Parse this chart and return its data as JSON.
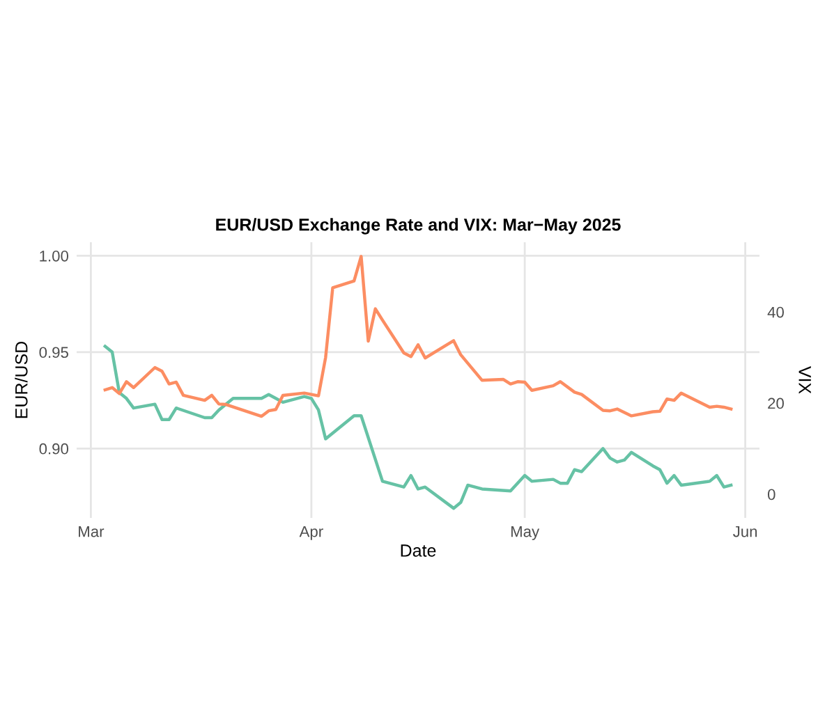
{
  "chart_data": {
    "type": "line",
    "title": "EUR/USD Exchange Rate and VIX: Mar−May 2025",
    "xlabel": "Date",
    "ylabel": "EUR/USD",
    "y2label": "VIX",
    "xlim": [
      "2025-02-27",
      "2025-06-03"
    ],
    "xticks": [
      {
        "value": "2025-03-01",
        "label": "Mar"
      },
      {
        "value": "2025-04-01",
        "label": "Apr"
      },
      {
        "value": "2025-05-01",
        "label": "May"
      },
      {
        "value": "2025-06-01",
        "label": "Jun"
      }
    ],
    "ylim": [
      0.864,
      1.007
    ],
    "yticks": [
      {
        "value": 0.9,
        "label": "0.90"
      },
      {
        "value": 0.95,
        "label": "0.95"
      },
      {
        "value": 1.0,
        "label": "1.00"
      }
    ],
    "y2lim": [
      -5.2,
      55.3
    ],
    "y2ticks": [
      0,
      20,
      40
    ],
    "grid": true,
    "legend": false,
    "series": [
      {
        "color": "#66c2a5",
        "x": [
          "2025-03-03",
          "2025-03-04",
          "2025-03-05",
          "2025-03-06",
          "2025-03-07",
          "2025-03-10",
          "2025-03-11",
          "2025-03-12",
          "2025-03-13",
          "2025-03-17",
          "2025-03-18",
          "2025-03-19",
          "2025-03-21",
          "2025-03-24",
          "2025-03-25",
          "2025-03-26",
          "2025-03-27",
          "2025-03-28",
          "2025-03-31",
          "2025-04-01",
          "2025-04-02",
          "2025-04-03",
          "2025-04-07",
          "2025-04-08",
          "2025-04-11",
          "2025-04-14",
          "2025-04-15",
          "2025-04-16",
          "2025-04-17",
          "2025-04-21",
          "2025-04-22",
          "2025-04-23",
          "2025-04-25",
          "2025-04-29",
          "2025-05-01",
          "2025-05-02",
          "2025-05-05",
          "2025-05-06",
          "2025-05-07",
          "2025-05-08",
          "2025-05-09",
          "2025-05-12",
          "2025-05-13",
          "2025-05-14",
          "2025-05-15",
          "2025-05-16",
          "2025-05-19",
          "2025-05-20",
          "2025-05-21",
          "2025-05-22",
          "2025-05-23",
          "2025-05-27",
          "2025-05-28",
          "2025-05-29",
          "2025-05-30"
        ],
        "values": [
          0.953,
          0.95,
          0.929,
          0.926,
          0.921,
          0.923,
          0.915,
          0.915,
          0.921,
          0.916,
          0.916,
          0.92,
          0.926,
          0.926,
          0.926,
          0.928,
          0.926,
          0.924,
          0.927,
          0.926,
          0.92,
          0.905,
          0.917,
          0.917,
          0.883,
          0.88,
          0.886,
          0.879,
          0.88,
          0.869,
          0.872,
          0.881,
          0.879,
          0.878,
          0.886,
          0.883,
          0.884,
          0.882,
          0.882,
          0.889,
          0.888,
          0.9,
          0.895,
          0.893,
          0.894,
          0.898,
          0.891,
          0.889,
          0.882,
          0.886,
          0.881,
          0.883,
          0.886,
          0.88,
          0.881
        ]
      },
      {
        "color": "#fc8d62",
        "axis": "y2",
        "x": [
          "2025-03-03",
          "2025-03-04",
          "2025-03-05",
          "2025-03-06",
          "2025-03-07",
          "2025-03-10",
          "2025-03-11",
          "2025-03-12",
          "2025-03-13",
          "2025-03-14",
          "2025-03-17",
          "2025-03-18",
          "2025-03-19",
          "2025-03-20",
          "2025-03-25",
          "2025-03-26",
          "2025-03-27",
          "2025-03-28",
          "2025-03-31",
          "2025-04-02",
          "2025-04-03",
          "2025-04-04",
          "2025-04-07",
          "2025-04-08",
          "2025-04-09",
          "2025-04-10",
          "2025-04-11",
          "2025-04-14",
          "2025-04-15",
          "2025-04-16",
          "2025-04-17",
          "2025-04-21",
          "2025-04-22",
          "2025-04-25",
          "2025-04-28",
          "2025-04-29",
          "2025-04-30",
          "2025-05-01",
          "2025-05-02",
          "2025-05-05",
          "2025-05-06",
          "2025-05-08",
          "2025-05-09",
          "2025-05-12",
          "2025-05-13",
          "2025-05-14",
          "2025-05-16",
          "2025-05-19",
          "2025-05-20",
          "2025-05-21",
          "2025-05-22",
          "2025-05-23",
          "2025-05-27",
          "2025-05-28",
          "2025-05-29",
          "2025-05-30"
        ],
        "values": [
          22.9,
          23.4,
          22.1,
          24.7,
          23.4,
          27.8,
          27.0,
          24.2,
          24.6,
          21.7,
          20.6,
          21.7,
          19.8,
          19.7,
          17.1,
          18.3,
          18.6,
          21.7,
          22.2,
          21.6,
          30.0,
          45.3,
          46.8,
          52.2,
          33.6,
          40.7,
          38.2,
          31.0,
          30.2,
          32.8,
          29.9,
          33.7,
          30.6,
          25.0,
          25.2,
          24.2,
          24.7,
          24.6,
          22.8,
          23.8,
          24.7,
          22.4,
          21.9,
          18.4,
          18.3,
          18.7,
          17.2,
          18.1,
          18.2,
          20.9,
          20.6,
          22.2,
          19.1,
          19.3,
          19.1,
          18.7
        ]
      }
    ]
  }
}
